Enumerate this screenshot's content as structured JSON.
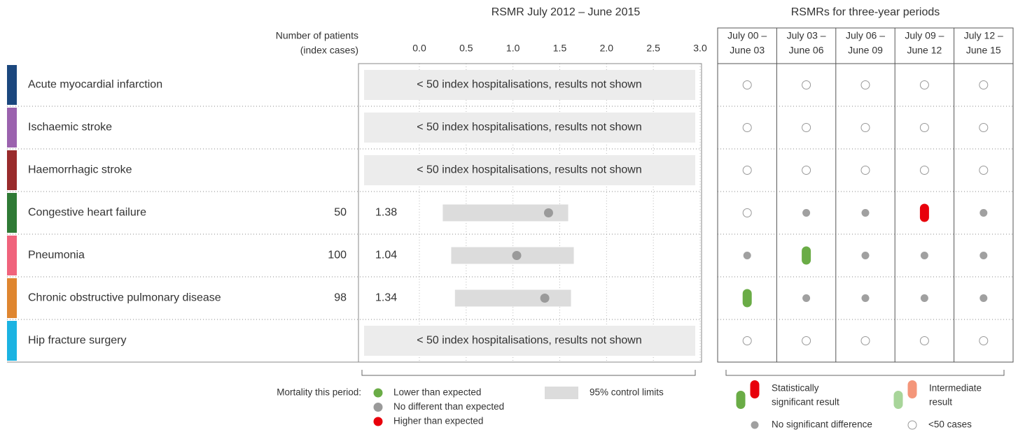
{
  "chart_data": {
    "type": "interval",
    "title": "RSMR July 2012 – June 2015",
    "count_header": [
      "Number of patients",
      "(index cases)"
    ],
    "xlim": [
      0,
      3
    ],
    "xticks": [
      {
        "value": 0,
        "label": "0.0"
      },
      0.5,
      {
        "value": 1,
        "label": "1.0"
      },
      1.5,
      {
        "value": 2,
        "label": "2.0"
      },
      2.5,
      {
        "value": 3,
        "label": "3.0"
      }
    ],
    "grid": true,
    "categories": [
      "Acute myocardial infarction",
      "Ischaemic stroke",
      "Haemorrhagic stroke",
      "Congestive heart failure",
      "Pneumonia",
      "Chronic obstructive pulmonary disease",
      "Hip fracture surgery"
    ],
    "colors": [
      "#1b477e",
      "#9b62ae",
      "#992b2c",
      "#2f7a35",
      "#f0637c",
      "#df8630",
      "#1bb3e2"
    ],
    "counts": [
      null,
      null,
      null,
      50,
      100,
      98,
      null
    ],
    "values": [
      null,
      null,
      null,
      1.38,
      1.04,
      1.34,
      null
    ],
    "lower": [
      null,
      null,
      null,
      0.25,
      0.34,
      0.38,
      null
    ],
    "upper": [
      null,
      null,
      null,
      1.59,
      1.65,
      1.62,
      null
    ],
    "suppressed_text": "< 50 index hospitalisations, results not shown",
    "periods_title": "RSMRs for three-year periods",
    "periods": [
      [
        "July 00 –",
        "June 03"
      ],
      [
        "July 03 –",
        "June 06"
      ],
      [
        "July 06 –",
        "June 09"
      ],
      [
        "July 09 –",
        "June 12"
      ],
      [
        "July 12 –",
        "June 15"
      ]
    ],
    "period_results": [
      [
        "<50 cases",
        "<50 cases",
        "<50 cases",
        "<50 cases",
        "<50 cases"
      ],
      [
        "<50 cases",
        "<50 cases",
        "<50 cases",
        "<50 cases",
        "<50 cases"
      ],
      [
        "<50 cases",
        "<50 cases",
        "<50 cases",
        "<50 cases",
        "<50 cases"
      ],
      [
        "<50 cases",
        "No significant difference",
        "No significant difference",
        "Higher than expected",
        "No significant difference"
      ],
      [
        "No significant difference",
        "Lower than expected",
        "No significant difference",
        "No significant difference",
        "No significant difference"
      ],
      [
        "Lower than expected",
        "No significant difference",
        "No significant difference",
        "No significant difference",
        "No significant difference"
      ],
      [
        "<50 cases",
        "<50 cases",
        "<50 cases",
        "<50 cases",
        "<50 cases"
      ]
    ],
    "legend": {
      "title": "Mortality this period:",
      "items": [
        {
          "name": "Lower than expected",
          "color": "#6aac46"
        },
        {
          "name": "No different than expected",
          "color": "#9a9a9a"
        },
        {
          "name": "Higher than expected",
          "color": "#e8000b"
        }
      ],
      "limits": {
        "name": "95% control limits",
        "color": "#dcdcdc"
      }
    },
    "period_legend": {
      "significant": [
        "Statistically",
        "significant result"
      ],
      "intermediate": [
        "Intermediate",
        "result"
      ],
      "intermediate_colors": [
        "#a8d59a",
        "#f4967a"
      ],
      "no_difference": {
        "name": "No significant difference",
        "color": "#a0a0a0"
      },
      "small": "<50 cases"
    }
  }
}
